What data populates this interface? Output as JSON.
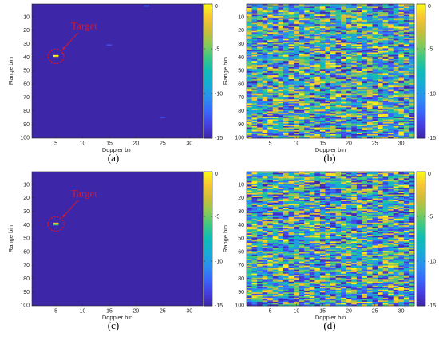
{
  "chart_data": [
    {
      "type": "heatmap",
      "caption": "(a)",
      "xlabel": "Doppler bin",
      "ylabel": "Range bin",
      "xlim": [
        0.5,
        32.5
      ],
      "ylim": [
        0.5,
        100.5
      ],
      "xticks": [
        5,
        10,
        15,
        20,
        25,
        30
      ],
      "yticks": [
        10,
        20,
        30,
        40,
        50,
        60,
        70,
        80,
        90,
        100
      ],
      "colorbar": {
        "range": [
          -15,
          0
        ],
        "ticks": [
          0,
          -5,
          -10,
          -15
        ]
      },
      "field": "noise_floor",
      "background_value": -15,
      "annotation": {
        "text": "Target",
        "color": "#e8141b"
      },
      "highlight": [
        {
          "doppler": 5,
          "range": 39,
          "value": 0
        },
        {
          "doppler": 5,
          "range": 40,
          "value": -3
        },
        {
          "doppler": 22,
          "range": 2,
          "value": -12
        },
        {
          "doppler": 15,
          "range": 31,
          "value": -13
        },
        {
          "doppler": 25,
          "range": 85,
          "value": -13
        }
      ]
    },
    {
      "type": "heatmap",
      "caption": "(b)",
      "xlabel": "Doppler bin",
      "ylabel": "Range bin",
      "xlim": [
        0.5,
        32.5
      ],
      "ylim": [
        0.5,
        100.5
      ],
      "xticks": [
        5,
        10,
        15,
        20,
        25,
        30
      ],
      "yticks": [
        10,
        20,
        30,
        40,
        50,
        60,
        70,
        80,
        90,
        100
      ],
      "colorbar": {
        "range": [
          -15,
          0
        ],
        "ticks": [
          0,
          -5,
          -10,
          -15
        ]
      },
      "field": "random_noise",
      "seed": 11
    },
    {
      "type": "heatmap",
      "caption": "(c)",
      "xlabel": "Doppler bin",
      "ylabel": "Range bin",
      "xlim": [
        0.5,
        32.5
      ],
      "ylim": [
        0.5,
        100.5
      ],
      "xticks": [
        5,
        10,
        15,
        20,
        25,
        30
      ],
      "yticks": [
        10,
        20,
        30,
        40,
        50,
        60,
        70,
        80,
        90,
        100
      ],
      "colorbar": {
        "range": [
          -15,
          0
        ],
        "ticks": [
          0,
          -5,
          -10,
          -15
        ]
      },
      "field": "noise_floor",
      "background_value": -15,
      "annotation": {
        "text": "Target",
        "color": "#e8141b"
      },
      "highlight": [
        {
          "doppler": 5,
          "range": 39,
          "value": -2
        },
        {
          "doppler": 5,
          "range": 40,
          "value": -6
        }
      ]
    },
    {
      "type": "heatmap",
      "caption": "(d)",
      "xlabel": "Doppler bin",
      "ylabel": "Range bin",
      "xlim": [
        0.5,
        32.5
      ],
      "ylim": [
        0.5,
        100.5
      ],
      "xticks": [
        5,
        10,
        15,
        20,
        25,
        30
      ],
      "yticks": [
        10,
        20,
        30,
        40,
        50,
        60,
        70,
        80,
        90,
        100
      ],
      "colorbar": {
        "range": [
          -15,
          0
        ],
        "ticks": [
          0,
          -5,
          -10,
          -15
        ]
      },
      "field": "random_noise",
      "seed": 29
    }
  ]
}
